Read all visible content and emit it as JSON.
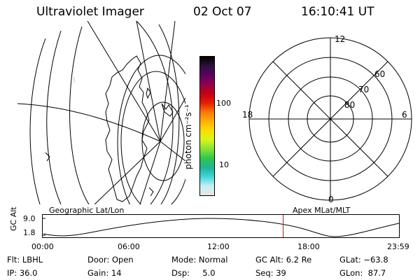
{
  "header": {
    "title": "Ultraviolet Imager",
    "date": "02 Oct 07",
    "time": "16:10:41 UT"
  },
  "colorbar": {
    "unit_label": "photon cm⁻²s⁻¹",
    "tick_labels": [
      "100",
      "10"
    ],
    "stops": [
      "#e6e6e6",
      "#c9eef3",
      "#42d6d9",
      "#1fb39e",
      "#2fc64e",
      "#7fe43a",
      "#d7f51c",
      "#f6e000",
      "#ffb000",
      "#f57a00",
      "#e61e00",
      "#c40010",
      "#96004a",
      "#5e0060",
      "#301040",
      "#000000"
    ]
  },
  "labels": {
    "left_map": "Geographic Lat/Lon",
    "right_map": "Apex MLat/MLT"
  },
  "polar": {
    "mlt_labels": [
      "12",
      "6",
      "0",
      "18"
    ],
    "lat_labels": [
      "60",
      "70",
      "80"
    ]
  },
  "altitude_plot": {
    "ylabel": "GC Alt",
    "yticks": [
      "9.0",
      "1.8"
    ],
    "xticks": [
      "00:00",
      "06:00",
      "12:00",
      "18:00",
      "23:59"
    ],
    "current_marker_hours": 16.18
  },
  "info": {
    "flt": "Flt: LBHL",
    "ip": "IP: 36.0",
    "door": "Door: Open",
    "gain": "Gain: 14",
    "mode": "Mode: Normal",
    "dsp": "Dsp:     5.0",
    "gcalt": "GC Alt: 6.2 Re",
    "seq": "Seq: 39",
    "glat": "GLat: −63.8",
    "glon": "GLon:  87.7"
  }
}
